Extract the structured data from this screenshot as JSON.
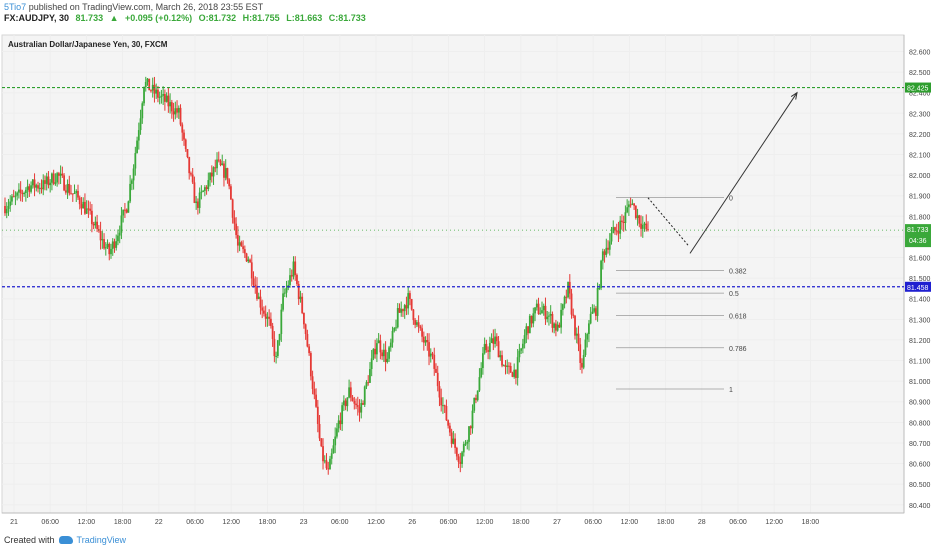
{
  "header": {
    "user": "5Tio7",
    "publish_text": "published on TradingView.com, March 26, 2018 23:55 EST",
    "symbol": "FX:AUDJPY, 30",
    "last": "81.733",
    "change": "+0.095 (+0.12%)",
    "open": "O:81.732",
    "high": "H:81.755",
    "low": "L:81.663",
    "close": "C:81.733",
    "up_arrow": "▲"
  },
  "footer": {
    "created_with": "Created with",
    "brand": "TradingView",
    "logo_icon": "tradingview-cloud-icon"
  },
  "colors": {
    "up": "#3aa83a",
    "down": "#e53935",
    "resistance": "#2e9e2e",
    "support": "#2020d0",
    "grid": "#eeeeee",
    "background": "#f4f4f4"
  },
  "chart_data": {
    "type": "candlestick",
    "title": "Australian Dollar/Japanese Yen, 30, FXCM",
    "ylim": [
      80.36,
      82.68
    ],
    "y_ticks": [
      "82.600",
      "82.500",
      "82.400",
      "82.300",
      "82.200",
      "82.100",
      "82.000",
      "81.900",
      "81.800",
      "81.700",
      "81.600",
      "81.500",
      "81.400",
      "81.300",
      "81.200",
      "81.100",
      "81.000",
      "80.900",
      "80.800",
      "80.700",
      "80.600",
      "80.500",
      "80.400"
    ],
    "x_ticks": [
      "21",
      "06:00",
      "12:00",
      "18:00",
      "22",
      "06:00",
      "12:00",
      "18:00",
      "23",
      "06:00",
      "12:00",
      "26",
      "06:00",
      "12:00",
      "18:00",
      "27",
      "06:00",
      "12:00",
      "18:00",
      "28",
      "06:00",
      "12:00",
      "18:00"
    ],
    "last_price_label": "81.733",
    "countdown_label": "04:36",
    "resistance": {
      "price": 82.425,
      "label": "82.425"
    },
    "support": {
      "price": 81.458,
      "label": "81.458"
    },
    "fib_levels": [
      {
        "label": "0",
        "price": 81.892
      },
      {
        "label": "0.382",
        "price": 81.537
      },
      {
        "label": "0.5",
        "price": 81.427
      },
      {
        "label": "0.618",
        "price": 81.318
      },
      {
        "label": "0.786",
        "price": 81.162
      },
      {
        "label": "1",
        "price": 80.962
      }
    ],
    "projection": {
      "from_price": 81.62,
      "to_price": 82.4
    },
    "pullback_line": {
      "from_price": 81.89,
      "to_price": 81.66
    },
    "anchors": [
      [
        0,
        81.85
      ],
      [
        8,
        81.9
      ],
      [
        14,
        81.95
      ],
      [
        22,
        81.95
      ],
      [
        30,
        82.0
      ],
      [
        38,
        81.92
      ],
      [
        44,
        81.87
      ],
      [
        50,
        81.78
      ],
      [
        56,
        81.68
      ],
      [
        60,
        81.62
      ],
      [
        64,
        81.7
      ],
      [
        70,
        81.85
      ],
      [
        74,
        82.05
      ],
      [
        78,
        82.3
      ],
      [
        80,
        82.45
      ],
      [
        86,
        82.4
      ],
      [
        92,
        82.36
      ],
      [
        100,
        82.3
      ],
      [
        104,
        82.1
      ],
      [
        110,
        81.85
      ],
      [
        116,
        81.95
      ],
      [
        122,
        82.05
      ],
      [
        128,
        82.0
      ],
      [
        134,
        81.65
      ],
      [
        140,
        81.6
      ],
      [
        146,
        81.4
      ],
      [
        152,
        81.28
      ],
      [
        156,
        81.1
      ],
      [
        160,
        81.4
      ],
      [
        166,
        81.55
      ],
      [
        172,
        81.3
      ],
      [
        176,
        81.05
      ],
      [
        182,
        80.65
      ],
      [
        186,
        80.55
      ],
      [
        192,
        80.8
      ],
      [
        198,
        80.95
      ],
      [
        204,
        80.85
      ],
      [
        210,
        81.05
      ],
      [
        214,
        81.2
      ],
      [
        220,
        81.1
      ],
      [
        226,
        81.32
      ],
      [
        232,
        81.4
      ],
      [
        238,
        81.25
      ],
      [
        246,
        81.1
      ],
      [
        252,
        80.88
      ],
      [
        258,
        80.7
      ],
      [
        262,
        80.62
      ],
      [
        268,
        80.8
      ],
      [
        276,
        81.15
      ],
      [
        282,
        81.2
      ],
      [
        288,
        81.05
      ],
      [
        294,
        81.05
      ],
      [
        300,
        81.25
      ],
      [
        306,
        81.35
      ],
      [
        312,
        81.33
      ],
      [
        318,
        81.25
      ],
      [
        324,
        81.45
      ],
      [
        328,
        81.25
      ],
      [
        332,
        81.05
      ],
      [
        336,
        81.3
      ],
      [
        340,
        81.35
      ],
      [
        344,
        81.62
      ],
      [
        350,
        81.72
      ],
      [
        356,
        81.78
      ],
      [
        360,
        81.88
      ],
      [
        364,
        81.8
      ],
      [
        368,
        81.74
      ],
      [
        370,
        81.733
      ]
    ]
  }
}
